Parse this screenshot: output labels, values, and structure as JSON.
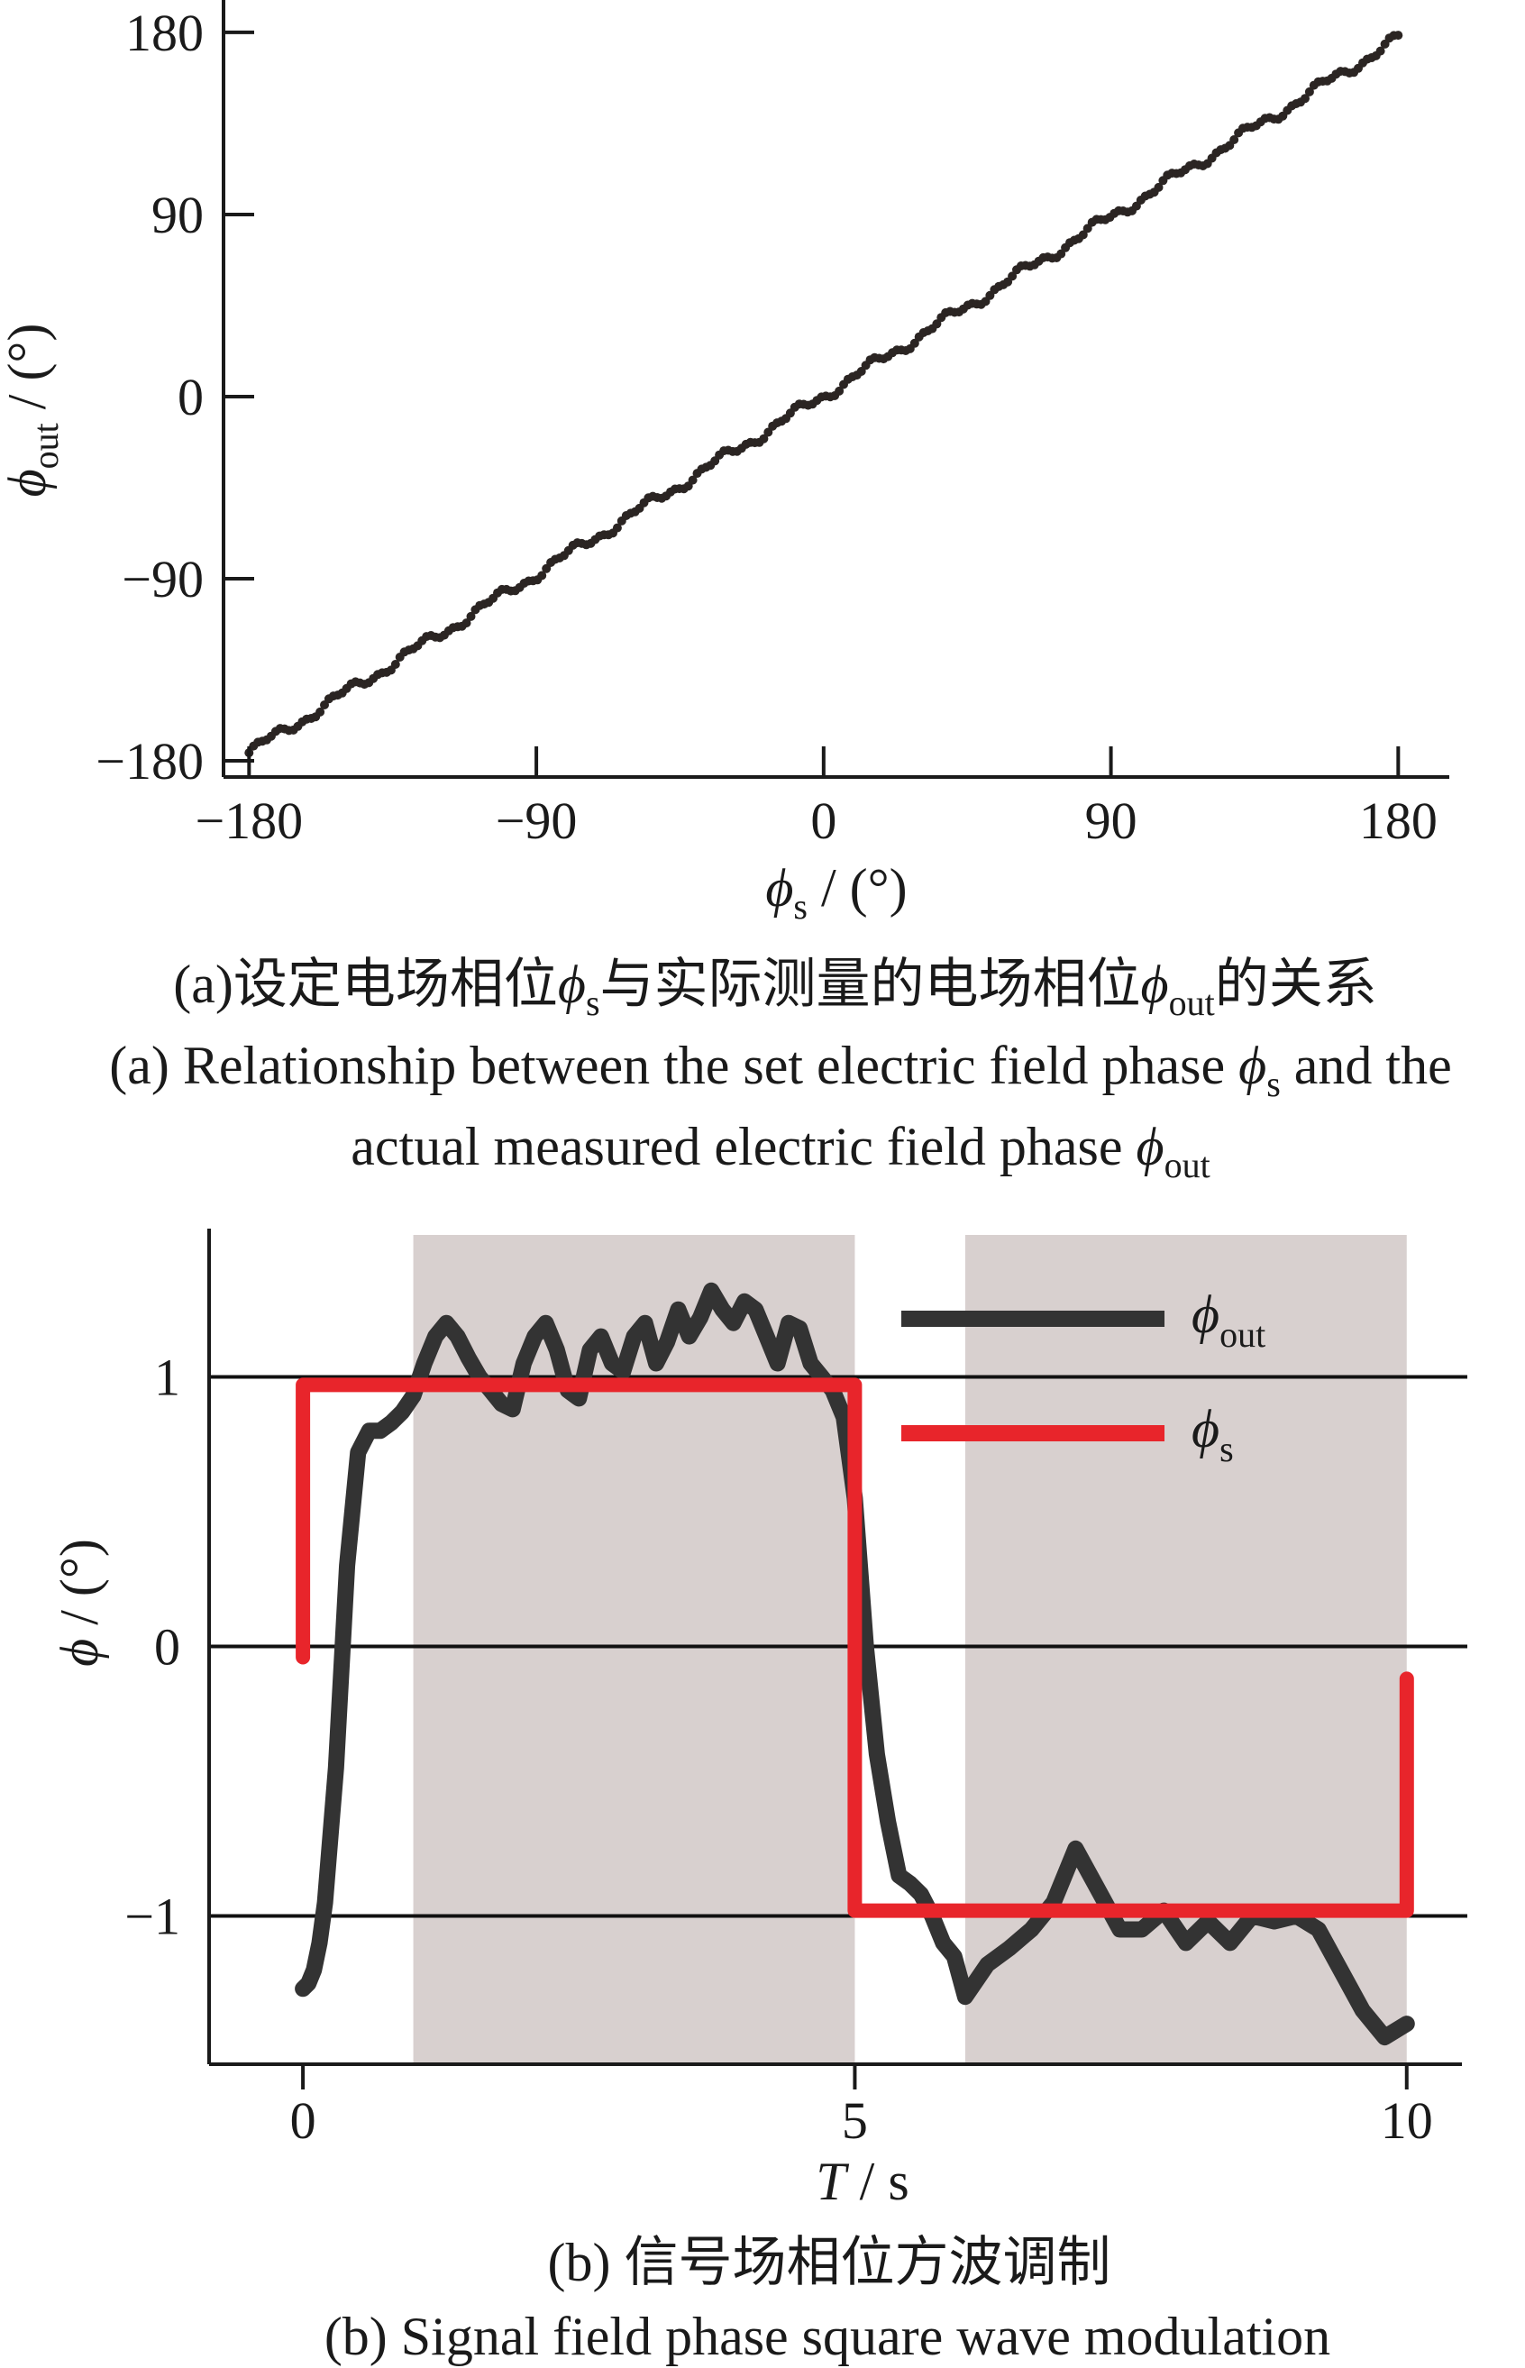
{
  "chart_data": [
    {
      "type": "scatter",
      "title": "",
      "xlabel": "ϕs / (°)",
      "ylabel": "ϕout / (°)",
      "xlim": [
        -188,
        196
      ],
      "ylim": [
        -188,
        196
      ],
      "x_ticks": [
        "−180",
        "−90",
        "0",
        "90",
        "180"
      ],
      "y_ticks": [
        "180",
        "90",
        "0",
        "−90",
        "−180"
      ],
      "x_tick_values": [
        -180,
        -90,
        0,
        90,
        180
      ],
      "y_tick_values": [
        180,
        90,
        0,
        -90,
        -180
      ],
      "grid": false,
      "point_color": "#2b2523",
      "series": [
        {
          "x_start": -180,
          "x_end": 180,
          "point_count": 260,
          "y_start": -176,
          "y_end": 177
        }
      ],
      "caption_cn": "(a)设定电场相位",
      "caption_cn_phi_s": "ϕ",
      "caption_cn_sub_s": "s",
      "caption_cn_mid": "与实际测量的电场相位",
      "caption_cn_phi_out": "ϕ",
      "caption_cn_sub_out": "out",
      "caption_cn_end": "的关系",
      "caption_en_line1": "(a) Relationship between the set electric field phase ",
      "caption_en_phi_s": "ϕ",
      "caption_en_sub_s": "s",
      "caption_en_line1_end": " and the",
      "caption_en_line2": "actual measured electric field phase ",
      "caption_en_phi_out": "ϕ",
      "caption_en_sub_out": "out"
    },
    {
      "type": "line",
      "title": "",
      "xlabel": "T / s",
      "ylabel": "ϕ / (°)",
      "xlim": [
        -0.85,
        10.5
      ],
      "ylim": [
        -1.55,
        1.55
      ],
      "x_ticks": [
        "0",
        "5",
        "10"
      ],
      "y_ticks": [
        "1",
        "0",
        "−1"
      ],
      "x_tick_values": [
        0,
        5,
        10
      ],
      "y_tick_values": [
        1,
        0,
        -1
      ],
      "grid": false,
      "reference_lines": [
        1,
        0,
        -1
      ],
      "shaded_ranges": [
        [
          1,
          5
        ],
        [
          6,
          10
        ]
      ],
      "shade_color": "#d8d0cf",
      "legend_position": "top-right",
      "series": [
        {
          "name": "ϕout",
          "color": "#333333",
          "x": [
            0,
            0.05,
            0.1,
            0.15,
            0.2,
            0.3,
            0.4,
            0.5,
            0.6,
            0.7,
            0.8,
            0.9,
            1.0,
            1.1,
            1.2,
            1.3,
            1.4,
            1.5,
            1.6,
            1.7,
            1.8,
            1.9,
            2.0,
            2.1,
            2.2,
            2.3,
            2.4,
            2.5,
            2.6,
            2.7,
            2.8,
            2.9,
            3.0,
            3.1,
            3.2,
            3.3,
            3.4,
            3.5,
            3.6,
            3.7,
            3.8,
            3.9,
            4.0,
            4.1,
            4.2,
            4.3,
            4.4,
            4.5,
            4.6,
            4.7,
            4.8,
            4.9,
            5.0,
            5.1,
            5.2,
            5.3,
            5.4,
            5.5,
            5.6,
            5.7,
            5.8,
            5.9,
            6.0,
            6.2,
            6.4,
            6.6,
            6.8,
            7.0,
            7.2,
            7.4,
            7.6,
            7.8,
            8.0,
            8.2,
            8.4,
            8.6,
            8.8,
            9.0,
            9.2,
            9.4,
            9.6,
            9.8,
            10.0
          ],
          "values": [
            -1.27,
            -1.25,
            -1.2,
            -1.1,
            -0.95,
            -0.45,
            0.3,
            0.72,
            0.8,
            0.8,
            0.83,
            0.87,
            0.93,
            1.05,
            1.15,
            1.2,
            1.15,
            1.07,
            1.0,
            0.95,
            0.9,
            0.88,
            1.05,
            1.15,
            1.2,
            1.1,
            0.95,
            0.92,
            1.1,
            1.15,
            1.05,
            1.02,
            1.15,
            1.2,
            1.05,
            1.13,
            1.25,
            1.15,
            1.22,
            1.32,
            1.25,
            1.2,
            1.28,
            1.25,
            1.15,
            1.05,
            1.2,
            1.18,
            1.05,
            1.0,
            0.95,
            0.85,
            0.55,
            0.0,
            -0.4,
            -0.65,
            -0.85,
            -0.88,
            -0.92,
            -1.0,
            -1.1,
            -1.15,
            -1.3,
            -1.18,
            -1.12,
            -1.05,
            -0.95,
            -0.75,
            -0.9,
            -1.05,
            -1.05,
            -0.98,
            -1.1,
            -1.02,
            -1.1,
            -1.0,
            -1.02,
            -1.0,
            -1.05,
            -1.2,
            -1.35,
            -1.45,
            -1.4
          ]
        },
        {
          "name": "ϕs",
          "color": "#e8252b",
          "x": [
            0,
            0,
            0.05,
            0.05,
            5.0,
            5.0,
            10.0,
            10.0
          ],
          "values": [
            -0.04,
            0.97,
            0.97,
            0.97,
            0.97,
            -0.98,
            -0.98,
            -0.12
          ]
        }
      ],
      "caption_cn": "(b) 信号场相位方波调制",
      "caption_en": "(b) Signal field phase square wave modulation"
    }
  ]
}
